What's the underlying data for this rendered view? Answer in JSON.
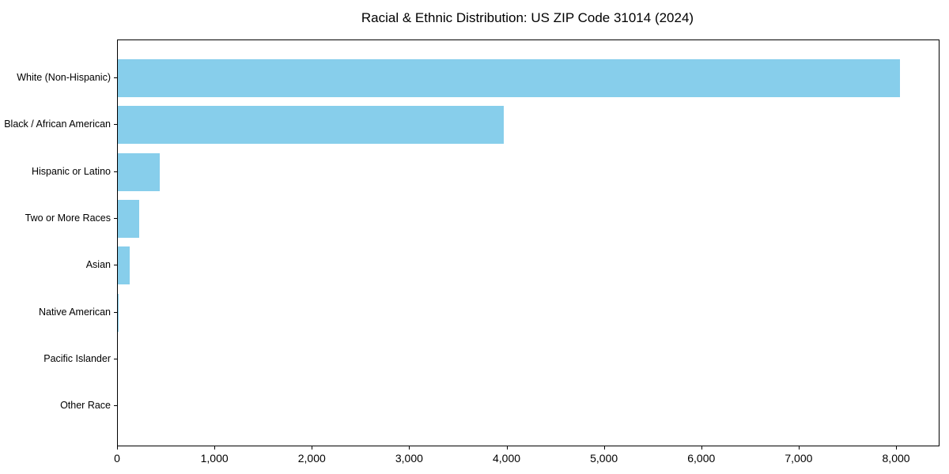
{
  "figure": {
    "background": "#ffffff",
    "text_color": "#000000"
  },
  "chart_data": {
    "type": "bar",
    "orientation": "horizontal",
    "title": "Racial & Ethnic Distribution: US ZIP Code 31014 (2024)",
    "categories": [
      "White (Non-Hispanic)",
      "Black / African American",
      "Hispanic or Latino",
      "Two or More Races",
      "Asian",
      "Native American",
      "Pacific Islander",
      "Other Race"
    ],
    "values": [
      8030,
      3960,
      430,
      220,
      120,
      10,
      0,
      0
    ],
    "xlabel": "",
    "ylabel": "",
    "xlim": [
      0,
      8430
    ],
    "xticks": [
      0,
      1000,
      2000,
      3000,
      4000,
      5000,
      6000,
      7000,
      8000
    ],
    "xtick_labels": [
      "0",
      "1,000",
      "2,000",
      "3,000",
      "4,000",
      "5,000",
      "6,000",
      "7,000",
      "8,000"
    ],
    "bar_color": "#87CEEB",
    "spine_color": "#000000",
    "grid": false,
    "legend": null
  }
}
